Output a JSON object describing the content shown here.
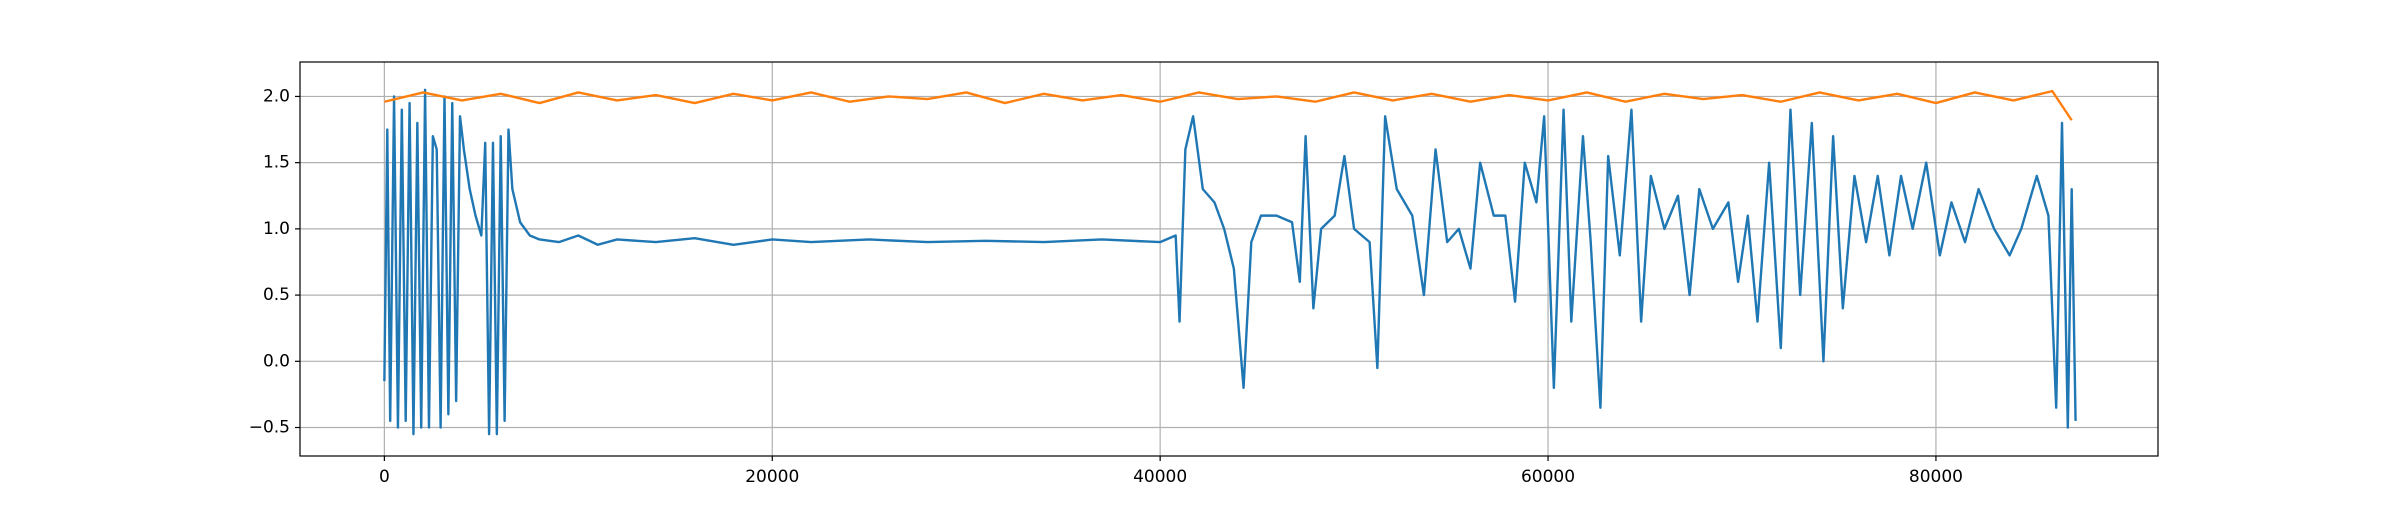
{
  "chart_data": {
    "type": "line",
    "xlim": [
      -4350,
      91450
    ],
    "xticks": [
      0,
      20000,
      40000,
      60000,
      80000
    ],
    "ylim": [
      -0.715,
      2.26
    ],
    "yticks": [
      {
        "value": -0.5,
        "label": "−0.5"
      },
      {
        "value": 0,
        "label": "0.0"
      },
      {
        "value": 0.5,
        "label": "0.5"
      },
      {
        "value": 1,
        "label": "1.0"
      },
      {
        "value": 1.5,
        "label": "1.5"
      },
      {
        "value": 2,
        "label": "2.0"
      }
    ],
    "grid": true,
    "series": [
      {
        "color": "#1f77b4",
        "x": [
          0,
          150,
          300,
          500,
          700,
          900,
          1100,
          1300,
          1500,
          1700,
          1900,
          2100,
          2300,
          2500,
          2700,
          2900,
          3100,
          3300,
          3500,
          3700,
          3900,
          4100,
          4400,
          4700,
          5000,
          5200,
          5400,
          5600,
          5800,
          6000,
          6200,
          6400,
          6600,
          7000,
          7500,
          8000,
          9000,
          10000,
          11000,
          12000,
          14000,
          16000,
          18000,
          20000,
          22000,
          25000,
          28000,
          31000,
          34000,
          37000,
          40000,
          40800,
          41000,
          41300,
          41700,
          42200,
          42800,
          43300,
          43800,
          44300,
          44700,
          45200,
          46000,
          46800,
          47200,
          47500,
          47900,
          48300,
          49000,
          49500,
          50000,
          50800,
          51200,
          51600,
          52200,
          53000,
          53600,
          54200,
          54800,
          55400,
          56000,
          56500,
          57200,
          57800,
          58300,
          58800,
          59400,
          59800,
          60300,
          60800,
          61200,
          61800,
          62200,
          62700,
          63100,
          63700,
          64300,
          64800,
          65300,
          66000,
          66700,
          67300,
          67800,
          68500,
          69300,
          69800,
          70300,
          70800,
          71400,
          72000,
          72500,
          73000,
          73600,
          74200,
          74700,
          75200,
          75800,
          76400,
          77000,
          77600,
          78200,
          78800,
          79500,
          80200,
          80800,
          81500,
          82200,
          83000,
          83800,
          84400,
          85200,
          85800,
          86200,
          86500,
          86800,
          87000,
          87200
        ],
        "values": [
          -0.15,
          1.75,
          -0.45,
          2.0,
          -0.5,
          1.9,
          -0.45,
          1.95,
          -0.55,
          1.8,
          -0.5,
          2.05,
          -0.5,
          1.7,
          1.6,
          -0.5,
          2.0,
          -0.4,
          1.95,
          -0.3,
          1.85,
          1.6,
          1.3,
          1.1,
          0.95,
          1.65,
          -0.55,
          1.65,
          -0.55,
          1.7,
          -0.45,
          1.75,
          1.3,
          1.05,
          0.95,
          0.92,
          0.9,
          0.95,
          0.88,
          0.92,
          0.9,
          0.93,
          0.88,
          0.92,
          0.9,
          0.92,
          0.9,
          0.91,
          0.9,
          0.92,
          0.9,
          0.95,
          0.3,
          1.6,
          1.85,
          1.3,
          1.2,
          1.0,
          0.7,
          -0.2,
          0.9,
          1.1,
          1.1,
          1.05,
          0.6,
          1.7,
          0.4,
          1.0,
          1.1,
          1.55,
          1.0,
          0.9,
          -0.05,
          1.85,
          1.3,
          1.1,
          0.5,
          1.6,
          0.9,
          1.0,
          0.7,
          1.5,
          1.1,
          1.1,
          0.45,
          1.5,
          1.2,
          1.85,
          -0.2,
          1.9,
          0.3,
          1.7,
          0.9,
          -0.35,
          1.55,
          0.8,
          1.9,
          0.3,
          1.4,
          1.0,
          1.25,
          0.5,
          1.3,
          1.0,
          1.2,
          0.6,
          1.1,
          0.3,
          1.5,
          0.1,
          1.9,
          0.5,
          1.8,
          0.0,
          1.7,
          0.4,
          1.4,
          0.9,
          1.4,
          0.8,
          1.4,
          1.0,
          1.5,
          0.8,
          1.2,
          0.9,
          1.3,
          1.0,
          0.8,
          1.0,
          1.4,
          1.1,
          -0.35,
          1.8,
          -0.5,
          1.3,
          -0.45
        ]
      },
      {
        "color": "#ff7f0e",
        "x": [
          0,
          2000,
          4000,
          6000,
          8000,
          10000,
          12000,
          14000,
          16000,
          18000,
          20000,
          22000,
          24000,
          26000,
          28000,
          30000,
          32000,
          34000,
          36000,
          38000,
          40000,
          42000,
          44000,
          46000,
          48000,
          50000,
          52000,
          54000,
          56000,
          58000,
          60000,
          62000,
          64000,
          66000,
          68000,
          70000,
          72000,
          74000,
          76000,
          78000,
          80000,
          82000,
          84000,
          86000,
          87000
        ],
        "values": [
          1.96,
          2.03,
          1.97,
          2.02,
          1.95,
          2.03,
          1.97,
          2.01,
          1.95,
          2.02,
          1.97,
          2.03,
          1.96,
          2.0,
          1.98,
          2.03,
          1.95,
          2.02,
          1.97,
          2.01,
          1.96,
          2.03,
          1.98,
          2.0,
          1.96,
          2.03,
          1.97,
          2.02,
          1.96,
          2.01,
          1.97,
          2.03,
          1.96,
          2.02,
          1.98,
          2.01,
          1.96,
          2.03,
          1.97,
          2.02,
          1.95,
          2.03,
          1.97,
          2.04,
          1.82
        ]
      }
    ]
  }
}
